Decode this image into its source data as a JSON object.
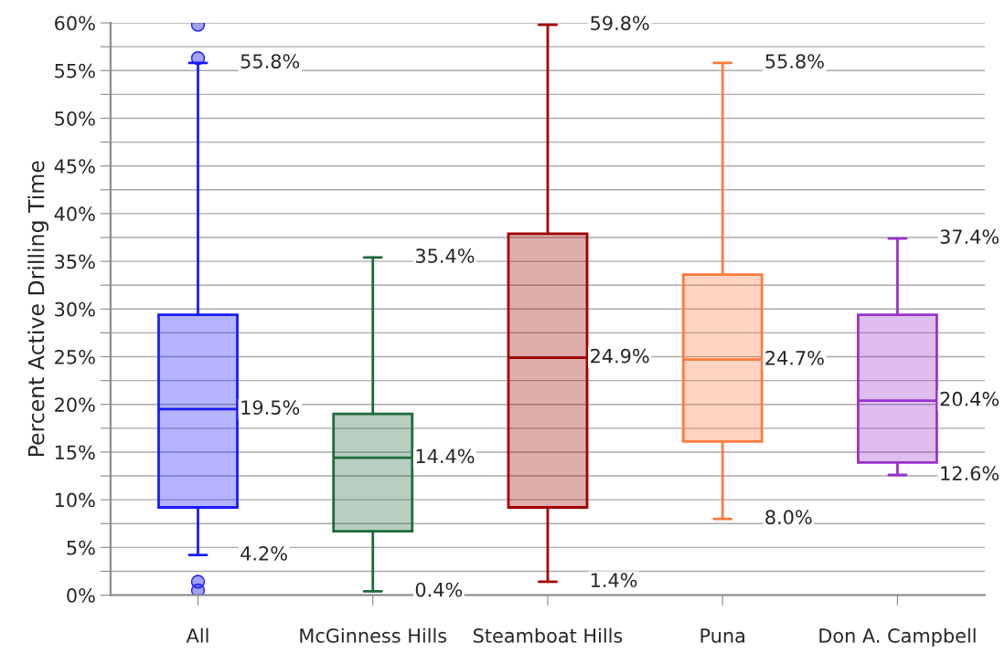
{
  "chart_data": {
    "type": "box",
    "ylabel": "Percent Active Drilling Time",
    "categories": [
      "All",
      "McGinness Hills",
      "Steamboat Hills",
      "Puna",
      "Don A. Campbell"
    ],
    "colors": [
      "#1a1aff",
      "#1e6b3c",
      "#a00000",
      "#ff7a3d",
      "#9933cc"
    ],
    "boxes": [
      {
        "low": 4.2,
        "q1": 9.2,
        "median": 19.5,
        "q3": 29.4,
        "high": 55.8,
        "outliers": [
          59.8,
          56.3,
          1.4,
          0.5
        ]
      },
      {
        "low": 0.4,
        "q1": 6.7,
        "median": 14.4,
        "q3": 19.0,
        "high": 35.4
      },
      {
        "low": 1.4,
        "q1": 9.2,
        "median": 24.9,
        "q3": 37.9,
        "high": 59.8
      },
      {
        "low": 8.0,
        "q1": 16.1,
        "median": 24.7,
        "q3": 33.6,
        "high": 55.8
      },
      {
        "low": 12.6,
        "q1": 13.9,
        "median": 20.4,
        "q3": 29.4,
        "high": 37.4
      }
    ],
    "ylim": [
      0,
      60
    ],
    "yticks": [
      {
        "value": 0,
        "label": "0%"
      },
      {
        "value": 2.5,
        "label": null
      },
      {
        "value": 5,
        "label": "5%"
      },
      {
        "value": 7.5,
        "label": null
      },
      {
        "value": 10,
        "label": "10%"
      },
      {
        "value": 12.5,
        "label": null
      },
      {
        "value": 15,
        "label": "15%"
      },
      {
        "value": 17.5,
        "label": null
      },
      {
        "value": 20,
        "label": "20%"
      },
      {
        "value": 22.5,
        "label": null
      },
      {
        "value": 25,
        "label": "25%"
      },
      {
        "value": 27.5,
        "label": null
      },
      {
        "value": 30,
        "label": "30%"
      },
      {
        "value": 32.5,
        "label": null
      },
      {
        "value": 35,
        "label": "35%"
      },
      {
        "value": 37.5,
        "label": null
      },
      {
        "value": 40,
        "label": "40%"
      },
      {
        "value": 42.5,
        "label": null
      },
      {
        "value": 45,
        "label": "45%"
      },
      {
        "value": 47.5,
        "label": null
      },
      {
        "value": 50,
        "label": "50%"
      },
      {
        "value": 52.5,
        "label": null
      },
      {
        "value": 55,
        "label": "55%"
      },
      {
        "value": 57.5,
        "label": null
      },
      {
        "value": 60,
        "label": "60%"
      }
    ],
    "grid": true,
    "annotations": [
      {
        "text": "55.8%",
        "x": "All",
        "y": 55.8
      },
      {
        "text": "19.5%",
        "x": "All",
        "y": 19.5
      },
      {
        "text": "4.2%",
        "x": "All",
        "y": 4.2
      },
      {
        "text": "35.4%",
        "x": "McGinness Hills",
        "y": 35.4
      },
      {
        "text": "14.4%",
        "x": "McGinness Hills",
        "y": 14.4
      },
      {
        "text": "0.4%",
        "x": "McGinness Hills",
        "y": 0.4
      },
      {
        "text": "59.8%",
        "x": "Steamboat Hills",
        "y": 59.8
      },
      {
        "text": "24.9%",
        "x": "Steamboat Hills",
        "y": 24.9
      },
      {
        "text": "1.4%",
        "x": "Steamboat Hills",
        "y": 1.4
      },
      {
        "text": "55.8%",
        "x": "Puna",
        "y": 55.8
      },
      {
        "text": "24.7%",
        "x": "Puna",
        "y": 24.7
      },
      {
        "text": "8.0%",
        "x": "Puna",
        "y": 8.0
      },
      {
        "text": "37.4%",
        "x": "Don A. Campbell",
        "y": 37.4
      },
      {
        "text": "20.4%",
        "x": "Don A. Campbell",
        "y": 20.4
      },
      {
        "text": "12.6%",
        "x": "Don A. Campbell",
        "y": 12.6
      }
    ]
  }
}
